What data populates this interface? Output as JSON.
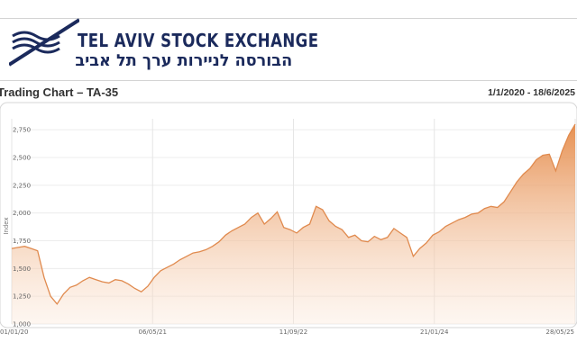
{
  "header": {
    "title_en": "TEL AVIV STOCK EXCHANGE",
    "title_he": "הבורסה לניירות ערך תל אביב"
  },
  "chart_header": {
    "title": "Trading Chart – TA-35",
    "date_range": "1/1/2020 - 18/6/2025"
  },
  "colors": {
    "brand": "#1b2a5c",
    "line": "#e08a4e",
    "fill": "#f0a36a"
  },
  "chart_data": {
    "type": "area",
    "title": "Trading Chart – TA-35",
    "xlabel": "",
    "ylabel": "Index",
    "ylim": [
      1000,
      2800
    ],
    "grid": true,
    "y_ticks": [
      1000,
      1250,
      1500,
      1750,
      2000,
      2250,
      2500,
      2750
    ],
    "y_tick_labels": [
      "1,000",
      "1,250",
      "1,500",
      "1,750",
      "2,000",
      "2,250",
      "2,500",
      "2,750"
    ],
    "x_tick_labels": [
      "01/01/20",
      "06/05/21",
      "11/09/22",
      "21/01/24",
      "28/05/25"
    ],
    "series": [
      {
        "values": [
          [
            0,
            1680
          ],
          [
            1,
            1690
          ],
          [
            2,
            1700
          ],
          [
            3,
            1680
          ],
          [
            4,
            1660
          ],
          [
            5,
            1420
          ],
          [
            6,
            1250
          ],
          [
            7,
            1180
          ],
          [
            8,
            1270
          ],
          [
            9,
            1330
          ],
          [
            10,
            1350
          ],
          [
            11,
            1390
          ],
          [
            12,
            1420
          ],
          [
            13,
            1400
          ],
          [
            14,
            1380
          ],
          [
            15,
            1370
          ],
          [
            16,
            1400
          ],
          [
            17,
            1390
          ],
          [
            18,
            1360
          ],
          [
            19,
            1320
          ],
          [
            20,
            1290
          ],
          [
            21,
            1340
          ],
          [
            22,
            1420
          ],
          [
            23,
            1480
          ],
          [
            24,
            1510
          ],
          [
            25,
            1540
          ],
          [
            26,
            1580
          ],
          [
            27,
            1610
          ],
          [
            28,
            1640
          ],
          [
            29,
            1650
          ],
          [
            30,
            1670
          ],
          [
            31,
            1700
          ],
          [
            32,
            1740
          ],
          [
            33,
            1800
          ],
          [
            34,
            1840
          ],
          [
            35,
            1870
          ],
          [
            36,
            1900
          ],
          [
            37,
            1960
          ],
          [
            38,
            2000
          ],
          [
            39,
            1900
          ],
          [
            40,
            1950
          ],
          [
            41,
            2010
          ],
          [
            42,
            1870
          ],
          [
            43,
            1850
          ],
          [
            44,
            1820
          ],
          [
            45,
            1870
          ],
          [
            46,
            1900
          ],
          [
            47,
            2060
          ],
          [
            48,
            2030
          ],
          [
            49,
            1930
          ],
          [
            50,
            1880
          ],
          [
            51,
            1850
          ],
          [
            52,
            1780
          ],
          [
            53,
            1800
          ],
          [
            54,
            1750
          ],
          [
            55,
            1740
          ],
          [
            56,
            1790
          ],
          [
            57,
            1760
          ],
          [
            58,
            1780
          ],
          [
            59,
            1860
          ],
          [
            60,
            1820
          ],
          [
            61,
            1780
          ],
          [
            62,
            1610
          ],
          [
            63,
            1680
          ],
          [
            64,
            1730
          ],
          [
            65,
            1800
          ],
          [
            66,
            1830
          ],
          [
            67,
            1880
          ],
          [
            68,
            1910
          ],
          [
            69,
            1940
          ],
          [
            70,
            1960
          ],
          [
            71,
            1990
          ],
          [
            72,
            2000
          ],
          [
            73,
            2040
          ],
          [
            74,
            2060
          ],
          [
            75,
            2050
          ],
          [
            76,
            2100
          ],
          [
            77,
            2190
          ],
          [
            78,
            2280
          ],
          [
            79,
            2350
          ],
          [
            80,
            2400
          ],
          [
            81,
            2480
          ],
          [
            82,
            2520
          ],
          [
            83,
            2530
          ],
          [
            84,
            2380
          ],
          [
            85,
            2560
          ],
          [
            86,
            2700
          ],
          [
            87,
            2800
          ]
        ]
      }
    ]
  }
}
